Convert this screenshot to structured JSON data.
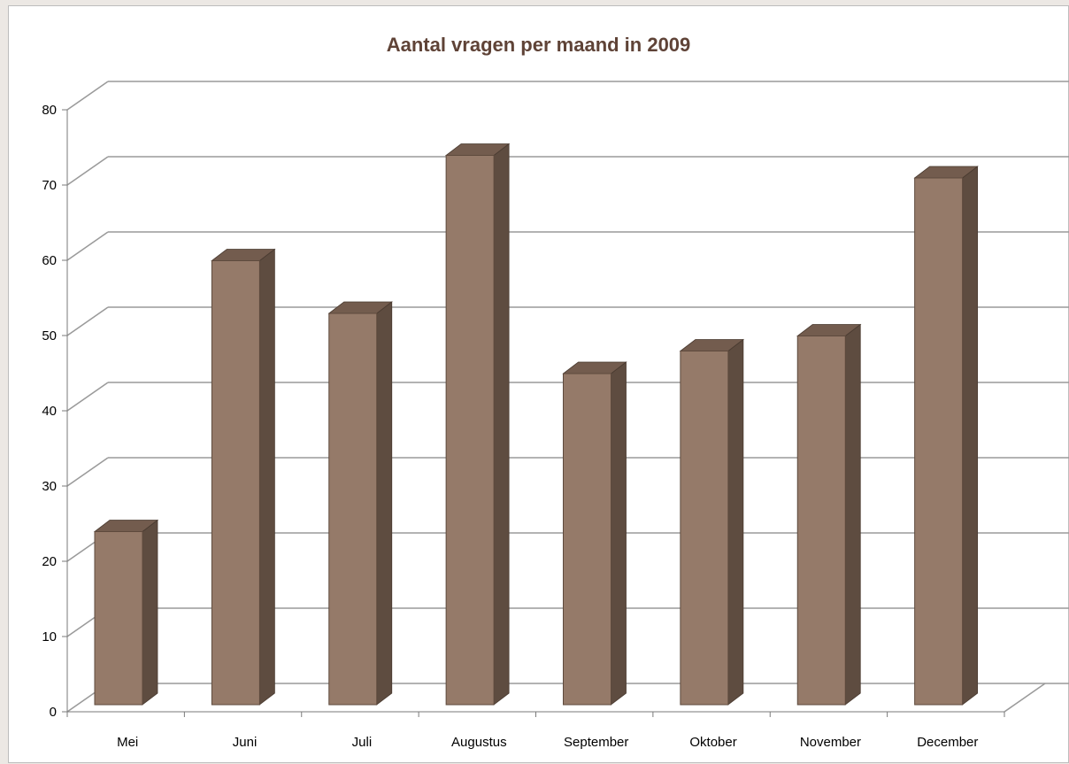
{
  "chart_data": {
    "type": "bar",
    "title": "Aantal vragen per maand in 2009",
    "xlabel": "",
    "ylabel": "",
    "categories": [
      "Mei",
      "Juni",
      "Juli",
      "Augustus",
      "September",
      "Oktober",
      "November",
      "December"
    ],
    "values": [
      23,
      59,
      52,
      73,
      44,
      47,
      49,
      70
    ],
    "ylim": [
      0,
      80
    ],
    "yticks": [
      "0",
      "10",
      "20",
      "30",
      "40",
      "50",
      "60",
      "70",
      "80"
    ],
    "grid": true,
    "legend": "none",
    "style": "3d-column",
    "colors": {
      "bar_front": "#957a69",
      "bar_side": "#5e4c40",
      "bar_top": "#735c4e",
      "gridline": "#9a9a9a",
      "title": "#5f4337"
    }
  }
}
